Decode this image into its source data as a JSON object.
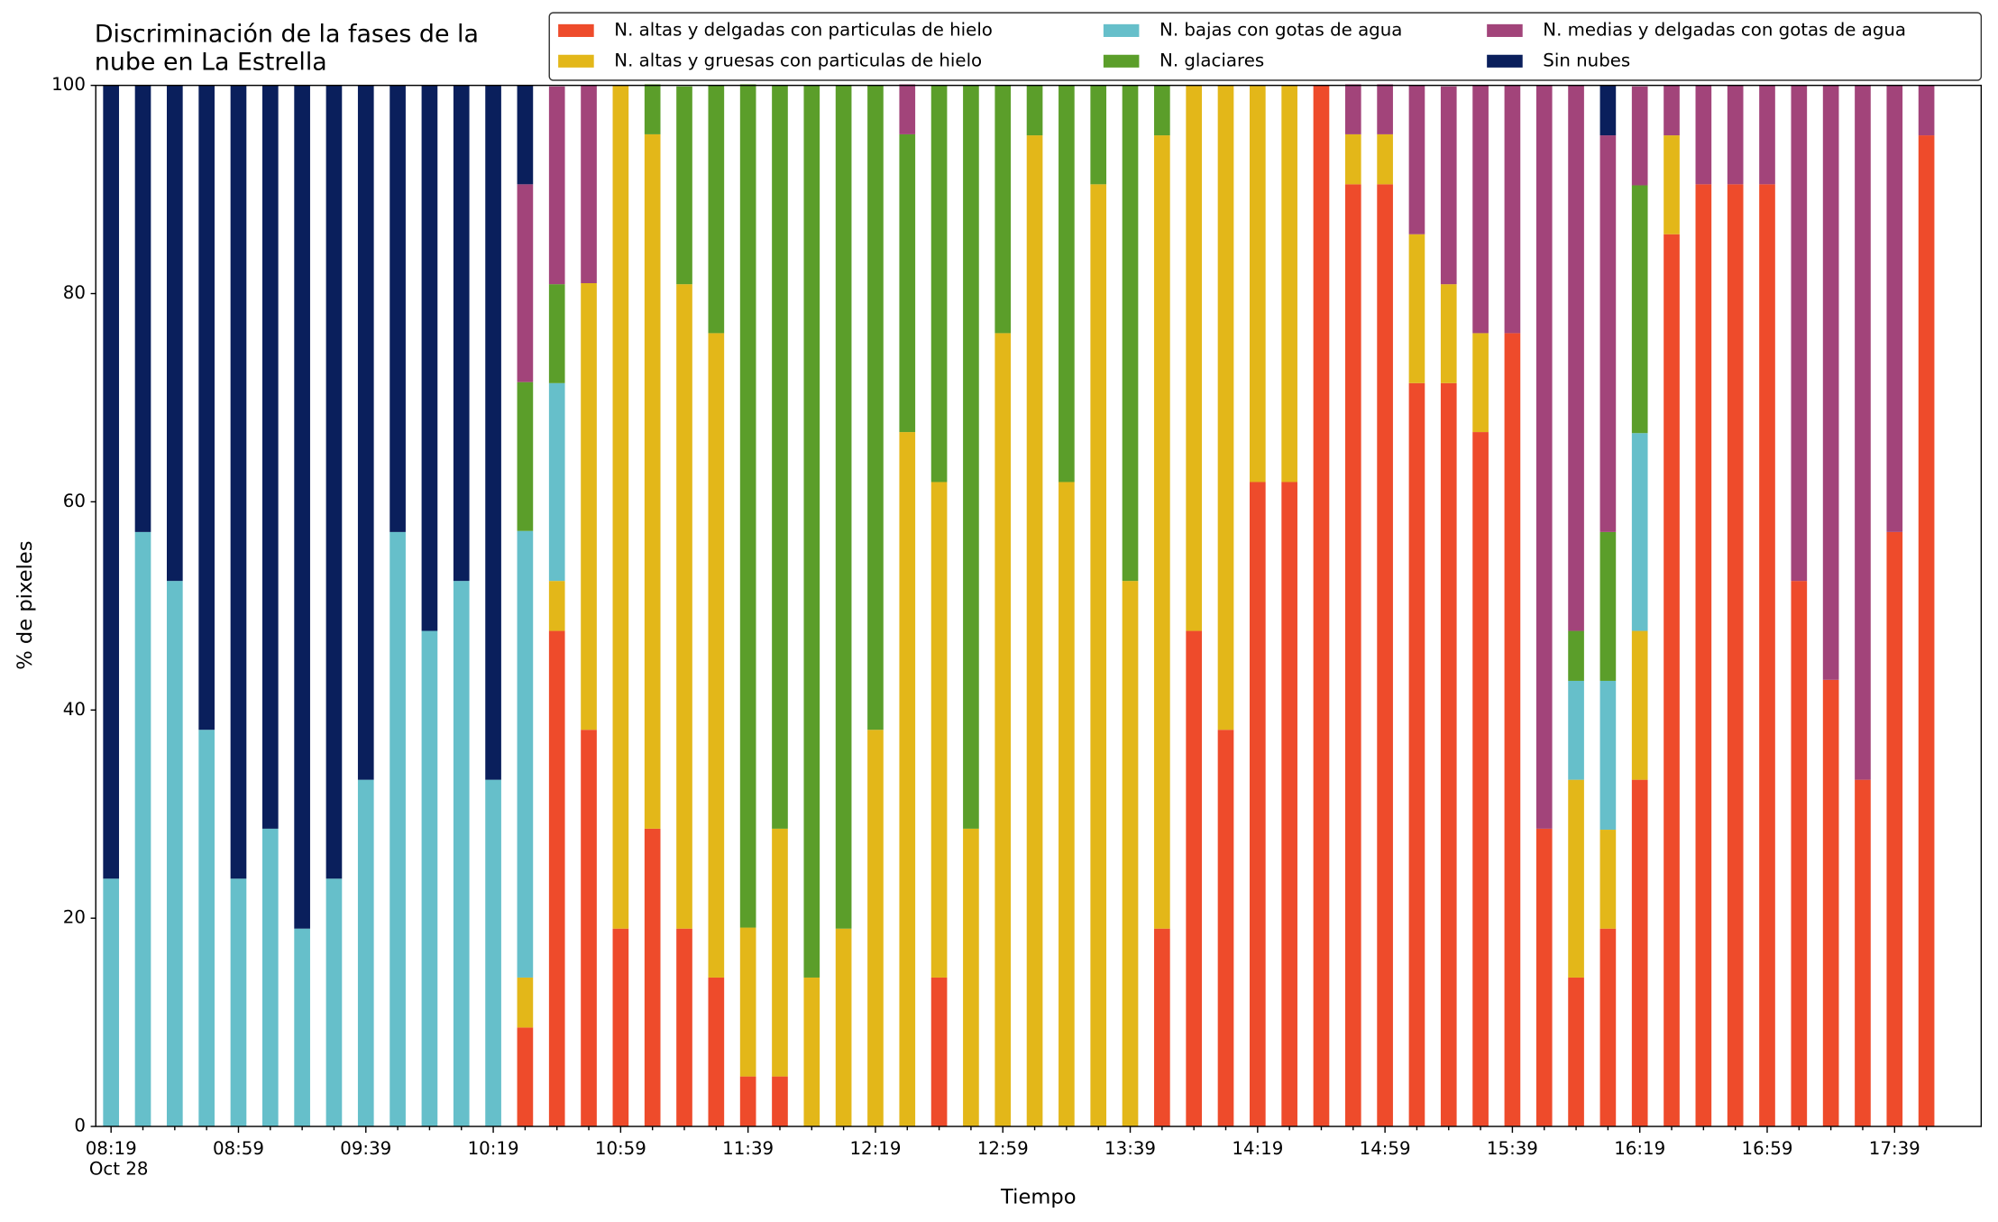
{
  "chart_data": {
    "type": "stacked_bar",
    "title": "Discriminación de la fases de la\nnube en La Estrella",
    "x_label": "Tiempo",
    "y_label": "% de pixeles",
    "x_sublabel": "Oct 28",
    "categories": [
      "08:19",
      null,
      null,
      null,
      "08:59",
      null,
      null,
      null,
      "09:39",
      null,
      null,
      null,
      "10:19",
      null,
      null,
      null,
      "10:59",
      null,
      null,
      null,
      "11:39",
      null,
      null,
      null,
      "12:19",
      null,
      null,
      null,
      "12:59",
      null,
      null,
      null,
      "13:39",
      null,
      null,
      null,
      "14:19",
      null,
      null,
      null,
      "14:59",
      null,
      null,
      null,
      "15:39",
      null,
      null,
      null,
      "16:19",
      null,
      null,
      null,
      "16:59",
      null,
      null,
      null,
      "17:39",
      null
    ],
    "ylim": [
      0,
      100
    ],
    "yticks": [
      0,
      20,
      40,
      60,
      80,
      100
    ],
    "legend": "top",
    "series": [
      {
        "name": "N. altas y delgadas con particulas de hielo",
        "color": "#ee4b2b",
        "values": [
          0,
          0,
          0,
          0,
          0,
          0,
          0,
          0,
          0,
          0,
          0,
          0,
          0,
          9.5,
          47.6,
          38.1,
          19.0,
          28.6,
          19.0,
          14.3,
          4.8,
          4.8,
          0,
          0,
          0,
          0,
          14.3,
          0,
          0,
          0,
          0,
          0,
          0,
          19.0,
          47.6,
          38.1,
          61.9,
          61.9,
          100,
          90.5,
          90.5,
          71.4,
          71.4,
          66.7,
          76.2,
          28.6,
          14.3,
          19.0,
          33.3,
          85.7,
          90.5,
          90.5,
          90.5,
          52.4,
          42.9,
          33.3,
          57.1,
          95.2
        ]
      },
      {
        "name": "N. altas y gruesas con particulas de hielo",
        "color": "#e3b719",
        "values": [
          0,
          0,
          0,
          0,
          0,
          0,
          0,
          0,
          0,
          0,
          0,
          0,
          0,
          4.8,
          4.8,
          42.9,
          81.0,
          66.7,
          61.9,
          61.9,
          14.3,
          23.8,
          14.3,
          19.0,
          38.1,
          66.7,
          47.6,
          28.6,
          76.2,
          95.2,
          61.9,
          90.5,
          52.4,
          76.2,
          52.4,
          61.9,
          38.1,
          38.1,
          0,
          4.8,
          4.8,
          14.3,
          9.5,
          9.5,
          0,
          0,
          19.0,
          9.5,
          14.3,
          9.5,
          0,
          0,
          0,
          0,
          0,
          0,
          0,
          0
        ]
      },
      {
        "name": "N. bajas con gotas de agua",
        "color": "#66bfca",
        "values": [
          23.8,
          57.1,
          52.4,
          38.1,
          23.8,
          28.6,
          19.0,
          23.8,
          33.3,
          57.1,
          47.6,
          52.4,
          33.3,
          42.9,
          19.0,
          0,
          0,
          0,
          0,
          0,
          0,
          0,
          0,
          0,
          0,
          0,
          0,
          0,
          0,
          0,
          0,
          0,
          0,
          0,
          0,
          0,
          0,
          0,
          0,
          0,
          0,
          0,
          0,
          0,
          0,
          0,
          9.5,
          14.3,
          19.0,
          0,
          0,
          0,
          0,
          0,
          0,
          0,
          0,
          0
        ]
      },
      {
        "name": "N. glaciares",
        "color": "#5b9e2a",
        "values": [
          0,
          0,
          0,
          0,
          0,
          0,
          0,
          0,
          0,
          0,
          0,
          0,
          0,
          14.3,
          9.5,
          0,
          0,
          4.8,
          19.0,
          23.8,
          81.0,
          71.4,
          85.7,
          81.0,
          61.9,
          28.6,
          38.1,
          71.4,
          23.8,
          4.8,
          38.1,
          9.5,
          47.6,
          4.8,
          0,
          0,
          0,
          0,
          0,
          0,
          0,
          0,
          0,
          0,
          0,
          0,
          4.8,
          14.3,
          23.8,
          0,
          0,
          0,
          0,
          0,
          0,
          0,
          0,
          0
        ]
      },
      {
        "name": "N. medias y delgadas con gotas de agua",
        "color": "#a2447a",
        "values": [
          0,
          0,
          0,
          0,
          0,
          0,
          0,
          0,
          0,
          0,
          0,
          0,
          0,
          19.0,
          19.0,
          19.0,
          0,
          0,
          0,
          0,
          0,
          0,
          0,
          0,
          0,
          4.8,
          0,
          0,
          0,
          0,
          0,
          0,
          0,
          0,
          0,
          0,
          0,
          0,
          0,
          4.8,
          4.8,
          14.3,
          19.0,
          23.8,
          23.8,
          71.4,
          52.4,
          38.1,
          9.5,
          4.8,
          9.5,
          9.5,
          9.5,
          47.6,
          57.1,
          66.7,
          42.9,
          4.8
        ]
      },
      {
        "name": "Sin nubes",
        "color": "#0a1f5c",
        "values": [
          76.2,
          42.9,
          47.6,
          61.9,
          76.2,
          71.4,
          81.0,
          76.2,
          66.7,
          42.9,
          52.4,
          47.6,
          66.7,
          9.5,
          0,
          0,
          0,
          0,
          0,
          0,
          0,
          0,
          0,
          0,
          0,
          0,
          0,
          0,
          0,
          0,
          0,
          0,
          0,
          0,
          0,
          0,
          0,
          0,
          0,
          0,
          0,
          0,
          0,
          0,
          0,
          0,
          0,
          4.8,
          0,
          0,
          0,
          0,
          0,
          0,
          0,
          0,
          0,
          0
        ]
      }
    ]
  }
}
